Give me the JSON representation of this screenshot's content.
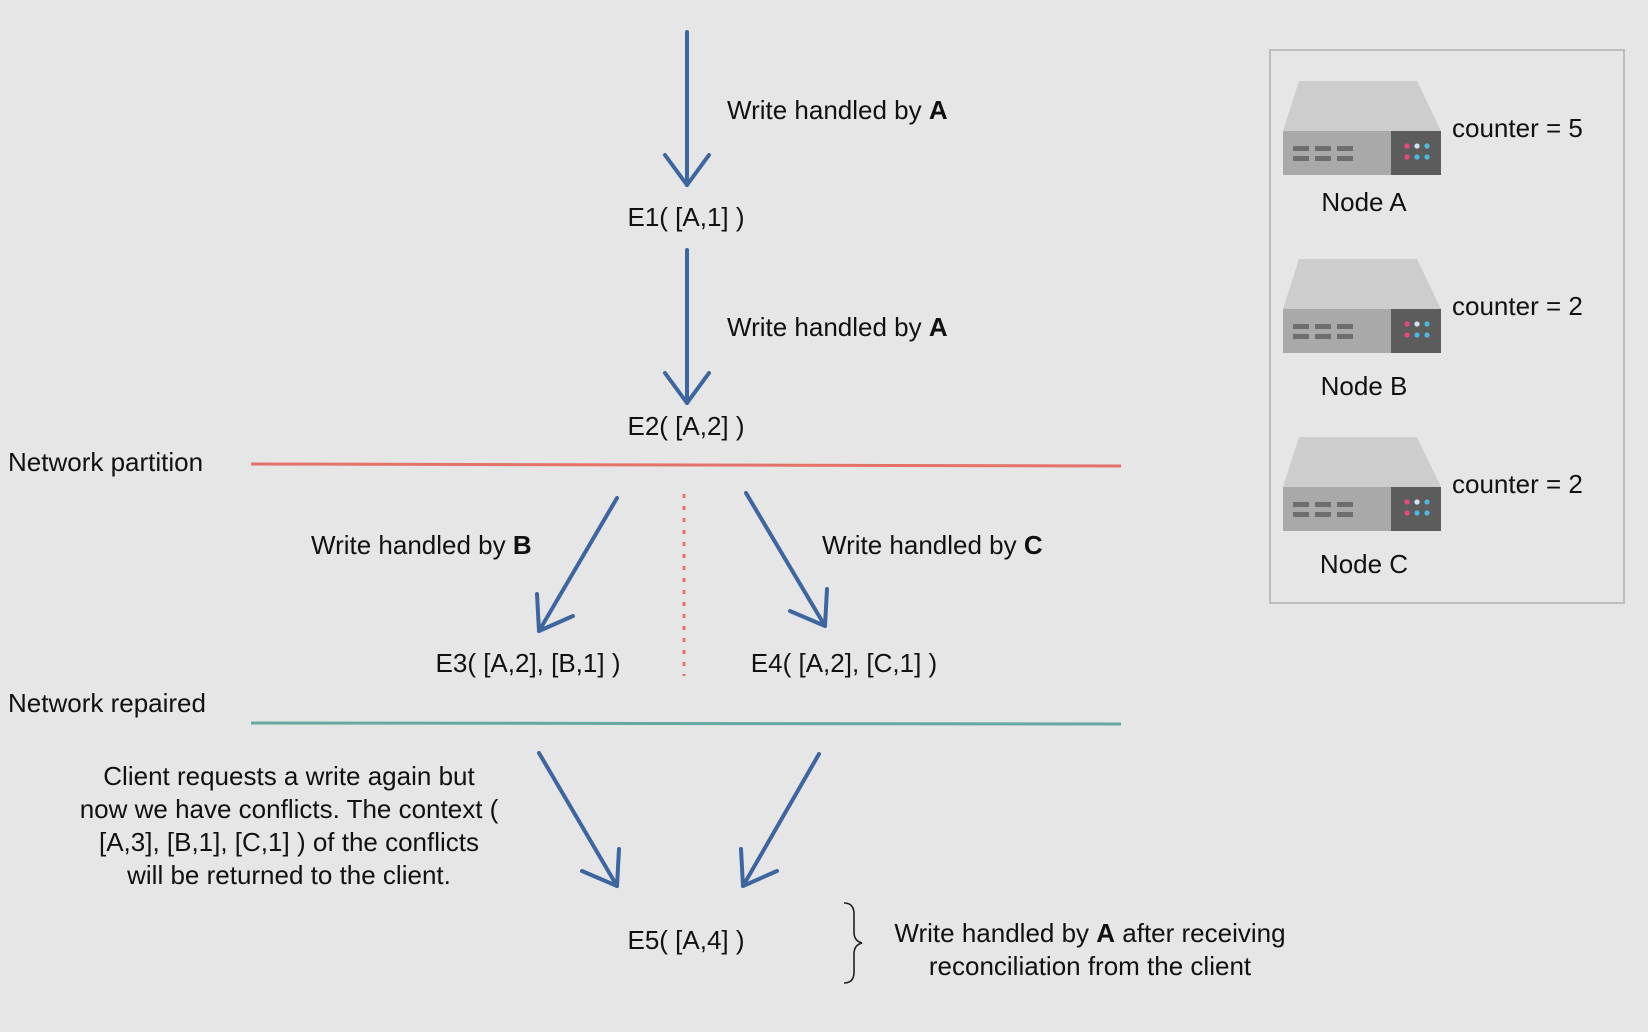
{
  "edges": [
    {
      "prefix": "Write handled by ",
      "node": "A",
      "suffix": ""
    },
    {
      "prefix": "Write handled by ",
      "node": "A",
      "suffix": ""
    },
    {
      "prefix": "Write handled by ",
      "node": "B",
      "suffix": ""
    },
    {
      "prefix": "Write handled by ",
      "node": "C",
      "suffix": ""
    }
  ],
  "events": {
    "e1": "E1( [A,1] )",
    "e2": "E2( [A,2] )",
    "e3": "E3( [A,2], [B,1] )",
    "e4": "E4( [A,2], [C,1] )",
    "e5": "E5( [A,4] )"
  },
  "partition_label": "Network partition",
  "repaired_label": "Network repaired",
  "client_note": "Client requests a write again but now we have conflicts. The context ( [A,3], [B,1], [C,1] ) of the conflicts will be returned to the client.",
  "reconcile_note": {
    "prefix": "Write handled by ",
    "node": "A",
    "line1_suffix": " after receiving",
    "line2": "reconciliation from the client"
  },
  "nodes": [
    {
      "name": "Node A",
      "counter": "counter = 5"
    },
    {
      "name": "Node B",
      "counter": "counter = 2"
    },
    {
      "name": "Node C",
      "counter": "counter = 2"
    }
  ],
  "colors": {
    "arrow": "#3d66a1",
    "partition_line": "#e4716a",
    "repaired_line": "#67a8a2",
    "background": "#e6e6e6"
  }
}
